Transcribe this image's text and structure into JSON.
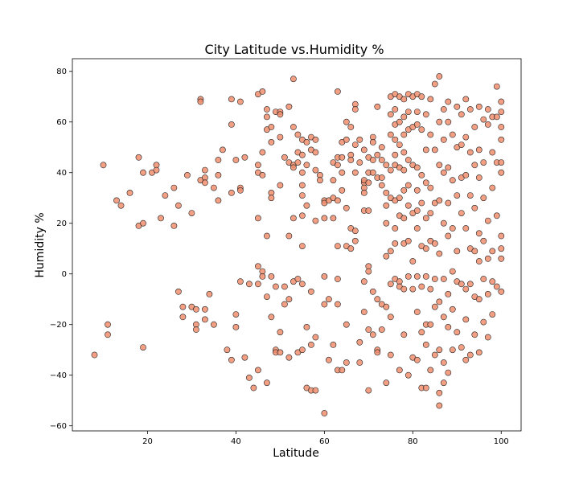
{
  "chart_data": {
    "type": "scatter",
    "title": "City Latitude vs.Humidity %",
    "xlabel": "Latitude",
    "ylabel": "Humidity %",
    "xlim": [
      3,
      104.5
    ],
    "ylim": [
      -62,
      85
    ],
    "xticks": [
      20,
      40,
      60,
      80,
      100
    ],
    "yticks": [
      -60,
      -40,
      -20,
      0,
      20,
      40,
      60,
      80
    ],
    "grid": false,
    "marker_color": "#f08e6f",
    "edge_color": "#222222",
    "points": [
      [
        8,
        -32
      ],
      [
        10,
        43
      ],
      [
        11,
        -20
      ],
      [
        11,
        -24
      ],
      [
        13,
        29
      ],
      [
        14,
        27
      ],
      [
        16,
        32
      ],
      [
        18,
        19
      ],
      [
        18,
        46
      ],
      [
        19,
        20
      ],
      [
        19,
        40
      ],
      [
        19,
        -29
      ],
      [
        21,
        40
      ],
      [
        22,
        43
      ],
      [
        22,
        41
      ],
      [
        23,
        22
      ],
      [
        24,
        31
      ],
      [
        26,
        34
      ],
      [
        26,
        19
      ],
      [
        27,
        27
      ],
      [
        27,
        -7
      ],
      [
        28,
        -13
      ],
      [
        28,
        -17
      ],
      [
        29,
        39
      ],
      [
        30,
        24
      ],
      [
        30,
        -13
      ],
      [
        31,
        -14
      ],
      [
        31,
        -20
      ],
      [
        31,
        -22
      ],
      [
        32,
        69
      ],
      [
        32,
        68
      ],
      [
        32,
        37
      ],
      [
        33,
        41
      ],
      [
        33,
        38
      ],
      [
        33,
        36
      ],
      [
        33,
        -14
      ],
      [
        33,
        -18
      ],
      [
        34,
        -8
      ],
      [
        35,
        34
      ],
      [
        35,
        -20
      ],
      [
        36,
        39
      ],
      [
        36,
        29
      ],
      [
        36,
        45
      ],
      [
        37,
        49
      ],
      [
        38,
        -30
      ],
      [
        39,
        69
      ],
      [
        39,
        59
      ],
      [
        39,
        32
      ],
      [
        39,
        -34
      ],
      [
        40,
        45
      ],
      [
        40,
        -16
      ],
      [
        40,
        -21
      ],
      [
        41,
        68
      ],
      [
        41,
        34
      ],
      [
        41,
        33
      ],
      [
        41,
        -3
      ],
      [
        42,
        46
      ],
      [
        42,
        -33
      ],
      [
        43,
        -4
      ],
      [
        43,
        -41
      ],
      [
        44,
        -45
      ],
      [
        45,
        71
      ],
      [
        45,
        40
      ],
      [
        45,
        43
      ],
      [
        45,
        22
      ],
      [
        45,
        3
      ],
      [
        45,
        -4
      ],
      [
        45,
        -38
      ],
      [
        46,
        72
      ],
      [
        46,
        48
      ],
      [
        46,
        39
      ],
      [
        46,
        1
      ],
      [
        46,
        -1
      ],
      [
        47,
        65
      ],
      [
        47,
        62
      ],
      [
        47,
        57
      ],
      [
        47,
        15
      ],
      [
        47,
        -9
      ],
      [
        47,
        -43
      ],
      [
        48,
        58
      ],
      [
        48,
        52
      ],
      [
        48,
        32
      ],
      [
        48,
        30
      ],
      [
        48,
        -1
      ],
      [
        48,
        -17
      ],
      [
        49,
        64
      ],
      [
        49,
        -5
      ],
      [
        49,
        -30
      ],
      [
        49,
        -31
      ],
      [
        50,
        64
      ],
      [
        50,
        54
      ],
      [
        50,
        63
      ],
      [
        50,
        35
      ],
      [
        50,
        -23
      ],
      [
        50,
        -31
      ],
      [
        51,
        46
      ],
      [
        51,
        -5
      ],
      [
        51,
        -12
      ],
      [
        52,
        66
      ],
      [
        52,
        44
      ],
      [
        52,
        15
      ],
      [
        52,
        -10
      ],
      [
        52,
        -33
      ],
      [
        53,
        77
      ],
      [
        53,
        58
      ],
      [
        53,
        43
      ],
      [
        53,
        42
      ],
      [
        53,
        22
      ],
      [
        53,
        -3
      ],
      [
        54,
        48
      ],
      [
        54,
        55
      ],
      [
        54,
        44
      ],
      [
        54,
        -2
      ],
      [
        54,
        -31
      ],
      [
        55,
        47
      ],
      [
        55,
        53
      ],
      [
        55,
        40
      ],
      [
        55,
        35
      ],
      [
        55,
        31
      ],
      [
        55,
        23
      ],
      [
        55,
        11
      ],
      [
        55,
        -4
      ],
      [
        55,
        -30
      ],
      [
        56,
        52
      ],
      [
        56,
        43
      ],
      [
        56,
        27
      ],
      [
        56,
        -21
      ],
      [
        56,
        -45
      ],
      [
        57,
        54
      ],
      [
        57,
        49
      ],
      [
        57,
        -7
      ],
      [
        57,
        -28
      ],
      [
        57,
        -46
      ],
      [
        58,
        48
      ],
      [
        58,
        41
      ],
      [
        58,
        53
      ],
      [
        58,
        21
      ],
      [
        58,
        -25
      ],
      [
        58,
        -46
      ],
      [
        59,
        39
      ],
      [
        59,
        37
      ],
      [
        60,
        29
      ],
      [
        60,
        28
      ],
      [
        60,
        22
      ],
      [
        60,
        -1
      ],
      [
        60,
        -12
      ],
      [
        60,
        -55
      ],
      [
        61,
        29
      ],
      [
        61,
        -10
      ],
      [
        61,
        -34
      ],
      [
        62,
        44
      ],
      [
        62,
        37
      ],
      [
        62,
        30
      ],
      [
        62,
        22
      ],
      [
        62,
        -28
      ],
      [
        63,
        72
      ],
      [
        63,
        46
      ],
      [
        63,
        43
      ],
      [
        63,
        29
      ],
      [
        63,
        11
      ],
      [
        63,
        -2
      ],
      [
        63,
        -12
      ],
      [
        63,
        -38
      ],
      [
        64,
        52
      ],
      [
        64,
        46
      ],
      [
        64,
        40
      ],
      [
        64,
        33
      ],
      [
        64,
        -38
      ],
      [
        65,
        60
      ],
      [
        65,
        53
      ],
      [
        65,
        26
      ],
      [
        65,
        11
      ],
      [
        65,
        -20
      ],
      [
        65,
        -35
      ],
      [
        66,
        58
      ],
      [
        66,
        47
      ],
      [
        66,
        45
      ],
      [
        66,
        18
      ],
      [
        66,
        10
      ],
      [
        67,
        67
      ],
      [
        67,
        65
      ],
      [
        67,
        51
      ],
      [
        67,
        40
      ],
      [
        67,
        17
      ],
      [
        67,
        13
      ],
      [
        68,
        53
      ],
      [
        68,
        44
      ],
      [
        68,
        -35
      ],
      [
        68,
        -27
      ],
      [
        69,
        49
      ],
      [
        69,
        36
      ],
      [
        69,
        37
      ],
      [
        69,
        34
      ],
      [
        69,
        32
      ],
      [
        69,
        25
      ],
      [
        69,
        -3
      ],
      [
        69,
        -15
      ],
      [
        70,
        46
      ],
      [
        70,
        40
      ],
      [
        70,
        36
      ],
      [
        70,
        25
      ],
      [
        70,
        3
      ],
      [
        70,
        1
      ],
      [
        70,
        -22
      ],
      [
        70,
        -46
      ],
      [
        71,
        54
      ],
      [
        71,
        52
      ],
      [
        71,
        45
      ],
      [
        71,
        40
      ],
      [
        71,
        -7
      ],
      [
        71,
        -24
      ],
      [
        72,
        66
      ],
      [
        72,
        47
      ],
      [
        72,
        38
      ],
      [
        72,
        -10
      ],
      [
        72,
        -30
      ],
      [
        72,
        -31
      ],
      [
        73,
        50
      ],
      [
        73,
        45
      ],
      [
        73,
        38
      ],
      [
        73,
        35
      ],
      [
        73,
        -12
      ],
      [
        73,
        -22
      ],
      [
        74,
        43
      ],
      [
        74,
        32
      ],
      [
        74,
        27
      ],
      [
        74,
        20
      ],
      [
        74,
        7
      ],
      [
        74,
        -13
      ],
      [
        74,
        -43
      ],
      [
        75,
        70
      ],
      [
        75,
        63
      ],
      [
        75,
        55
      ],
      [
        75,
        41
      ],
      [
        75,
        30
      ],
      [
        75,
        9
      ],
      [
        75,
        -4
      ],
      [
        75,
        -17
      ],
      [
        75,
        -32
      ],
      [
        76,
        71
      ],
      [
        76,
        65
      ],
      [
        76,
        59
      ],
      [
        76,
        53
      ],
      [
        76,
        47
      ],
      [
        76,
        43
      ],
      [
        76,
        29
      ],
      [
        76,
        18
      ],
      [
        76,
        12
      ],
      [
        76,
        -2
      ],
      [
        77,
        70
      ],
      [
        77,
        60
      ],
      [
        77,
        51
      ],
      [
        77,
        42
      ],
      [
        77,
        30
      ],
      [
        77,
        23
      ],
      [
        77,
        -3
      ],
      [
        77,
        -5
      ],
      [
        77,
        -38
      ],
      [
        78,
        69
      ],
      [
        78,
        62
      ],
      [
        78,
        55
      ],
      [
        78,
        48
      ],
      [
        78,
        41
      ],
      [
        78,
        33
      ],
      [
        78,
        22
      ],
      [
        78,
        12
      ],
      [
        78,
        -6
      ],
      [
        78,
        -24
      ],
      [
        79,
        71
      ],
      [
        79,
        64
      ],
      [
        79,
        57
      ],
      [
        79,
        45
      ],
      [
        79,
        35
      ],
      [
        79,
        27
      ],
      [
        79,
        13
      ],
      [
        79,
        -1
      ],
      [
        79,
        -40
      ],
      [
        80,
        70
      ],
      [
        80,
        58
      ],
      [
        80,
        43
      ],
      [
        80,
        24
      ],
      [
        80,
        5
      ],
      [
        80,
        -6
      ],
      [
        80,
        -33
      ],
      [
        81,
        71
      ],
      [
        81,
        64
      ],
      [
        81,
        59
      ],
      [
        81,
        42
      ],
      [
        81,
        33
      ],
      [
        81,
        25
      ],
      [
        81,
        18
      ],
      [
        81,
        -1
      ],
      [
        81,
        -15
      ],
      [
        81,
        -34
      ],
      [
        82,
        70
      ],
      [
        82,
        57
      ],
      [
        82,
        39
      ],
      [
        82,
        28
      ],
      [
        82,
        11
      ],
      [
        82,
        -5
      ],
      [
        82,
        -23
      ],
      [
        82,
        -45
      ],
      [
        83,
        63
      ],
      [
        83,
        49
      ],
      [
        83,
        36
      ],
      [
        83,
        22
      ],
      [
        83,
        10
      ],
      [
        83,
        -1
      ],
      [
        83,
        -20
      ],
      [
        83,
        -28
      ],
      [
        83,
        -45
      ],
      [
        84,
        69
      ],
      [
        84,
        55
      ],
      [
        84,
        34
      ],
      [
        84,
        24
      ],
      [
        84,
        13
      ],
      [
        84,
        -6
      ],
      [
        84,
        -20
      ],
      [
        84,
        -38
      ],
      [
        85,
        75
      ],
      [
        85,
        49
      ],
      [
        85,
        28
      ],
      [
        85,
        12
      ],
      [
        85,
        -2
      ],
      [
        85,
        -13
      ],
      [
        85,
        -32
      ],
      [
        86,
        78
      ],
      [
        86,
        60
      ],
      [
        86,
        43
      ],
      [
        86,
        29
      ],
      [
        86,
        8
      ],
      [
        86,
        -11
      ],
      [
        86,
        -30
      ],
      [
        86,
        -47
      ],
      [
        86,
        -52
      ],
      [
        87,
        65
      ],
      [
        87,
        53
      ],
      [
        87,
        40
      ],
      [
        87,
        20
      ],
      [
        87,
        -2
      ],
      [
        87,
        -17
      ],
      [
        87,
        -35
      ],
      [
        87,
        -43
      ],
      [
        88,
        68
      ],
      [
        88,
        60
      ],
      [
        88,
        42
      ],
      [
        88,
        28
      ],
      [
        88,
        15
      ],
      [
        88,
        -8
      ],
      [
        88,
        -21
      ],
      [
        88,
        -39
      ],
      [
        89,
        55
      ],
      [
        89,
        37
      ],
      [
        89,
        18
      ],
      [
        89,
        1
      ],
      [
        89,
        -14
      ],
      [
        89,
        -30
      ],
      [
        90,
        66
      ],
      [
        90,
        50
      ],
      [
        90,
        31
      ],
      [
        90,
        9
      ],
      [
        90,
        -3
      ],
      [
        90,
        -23
      ],
      [
        91,
        63
      ],
      [
        91,
        51
      ],
      [
        91,
        38
      ],
      [
        91,
        24
      ],
      [
        91,
        -4
      ],
      [
        91,
        -29
      ],
      [
        92,
        69
      ],
      [
        92,
        54
      ],
      [
        92,
        39
      ],
      [
        92,
        18
      ],
      [
        92,
        -6
      ],
      [
        92,
        -18
      ],
      [
        92,
        -34
      ],
      [
        93,
        65
      ],
      [
        93,
        48
      ],
      [
        93,
        31
      ],
      [
        93,
        10
      ],
      [
        93,
        -4
      ],
      [
        93,
        -32
      ],
      [
        94,
        58
      ],
      [
        94,
        43
      ],
      [
        94,
        26
      ],
      [
        94,
        9
      ],
      [
        94,
        -9
      ],
      [
        94,
        -24
      ],
      [
        95,
        66
      ],
      [
        95,
        49
      ],
      [
        95,
        38
      ],
      [
        95,
        16
      ],
      [
        95,
        5
      ],
      [
        95,
        -10
      ],
      [
        95,
        -31
      ],
      [
        96,
        61
      ],
      [
        96,
        44
      ],
      [
        96,
        30
      ],
      [
        96,
        13
      ],
      [
        96,
        -2
      ],
      [
        96,
        -19
      ],
      [
        97,
        65
      ],
      [
        97,
        59
      ],
      [
        97,
        21
      ],
      [
        97,
        6
      ],
      [
        97,
        -8
      ],
      [
        97,
        -25
      ],
      [
        98,
        62
      ],
      [
        98,
        48
      ],
      [
        98,
        34
      ],
      [
        98,
        9
      ],
      [
        98,
        -3
      ],
      [
        98,
        -16
      ],
      [
        99,
        74
      ],
      [
        99,
        62
      ],
      [
        99,
        44
      ],
      [
        99,
        23
      ],
      [
        99,
        -5
      ],
      [
        100,
        68
      ],
      [
        100,
        64
      ],
      [
        100,
        58
      ],
      [
        100,
        53
      ],
      [
        100,
        44
      ],
      [
        100,
        40
      ],
      [
        100,
        15
      ],
      [
        100,
        10
      ],
      [
        100,
        6
      ],
      [
        100,
        -7
      ]
    ]
  }
}
